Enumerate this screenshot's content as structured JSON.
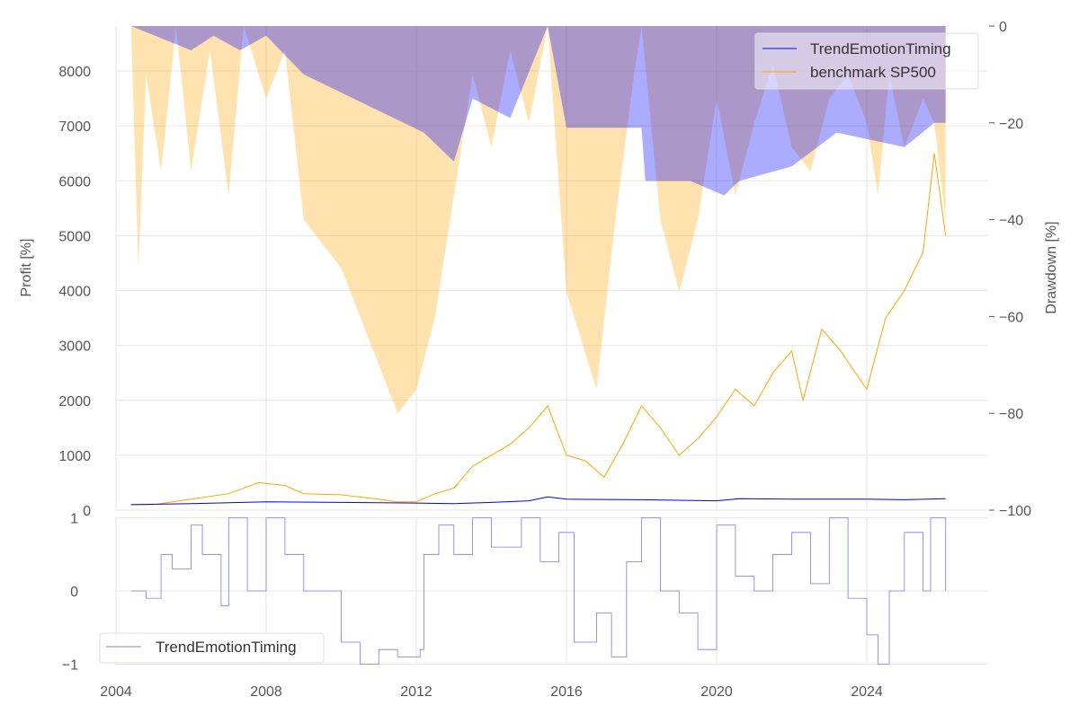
{
  "chart_data": [
    {
      "type": "area+line",
      "title": "",
      "xlabel": "",
      "ylabel": "Profit [%]",
      "ylabel_right": "Drawdown [%]",
      "xlim": [
        2003.6,
        2027.0
      ],
      "ylim": [
        0,
        8800
      ],
      "ylim_right": [
        -100,
        0
      ],
      "x_ticks": [
        2004,
        2008,
        2012,
        2016,
        2020,
        2024
      ],
      "y_ticks": [
        0,
        1000,
        2000,
        3000,
        4000,
        5000,
        6000,
        7000,
        8000
      ],
      "y_ticks_right": [
        0,
        -20,
        -40,
        -60,
        -80,
        -100
      ],
      "grid": true,
      "legend_position": "top-right",
      "legend": [
        "TrendEmotionTiming",
        "benchmark SP500"
      ],
      "colors": {
        "strategy": "#0000ff",
        "benchmark": "#ffa500",
        "strategy_dd": "#aaaaff",
        "benchmark_dd": "#ffe0aa",
        "overlap_dd": "#c4a8a8"
      },
      "series": [
        {
          "name": "TrendEmotionTiming",
          "x": [
            2004.4,
            2006,
            2008,
            2010,
            2012,
            2013,
            2014,
            2015,
            2015.5,
            2016,
            2018,
            2020,
            2020.6,
            2022,
            2024,
            2025,
            2026.1
          ],
          "values": [
            100,
            120,
            150,
            140,
            130,
            120,
            140,
            170,
            240,
            200,
            190,
            170,
            210,
            200,
            200,
            190,
            210
          ]
        },
        {
          "name": "benchmark SP500",
          "x": [
            2004.4,
            2005,
            2006,
            2007,
            2007.8,
            2008.5,
            2009,
            2010,
            2011,
            2011.5,
            2012,
            2012.5,
            2013,
            2013.5,
            2014,
            2014.5,
            2015,
            2015.5,
            2016,
            2016.5,
            2017,
            2017.5,
            2018,
            2018.5,
            2019,
            2019.5,
            2020,
            2020.5,
            2021,
            2021.5,
            2022,
            2022.3,
            2022.8,
            2023.3,
            2024,
            2024.5,
            2025,
            2025.5,
            2025.8,
            2026.1
          ],
          "values": [
            100,
            100,
            200,
            300,
            500,
            450,
            300,
            280,
            200,
            150,
            150,
            300,
            400,
            800,
            1000,
            1200,
            1500,
            1900,
            1000,
            900,
            600,
            1200,
            1900,
            1500,
            1000,
            1300,
            1700,
            2200,
            1900,
            2500,
            2900,
            2000,
            3300,
            2900,
            2200,
            3500,
            4000,
            4700,
            6500,
            5000
          ]
        }
      ],
      "drawdown_series": [
        {
          "name": "TrendEmotionTiming drawdown",
          "x": [
            2004.4,
            2006,
            2006.6,
            2007.3,
            2008,
            2009,
            2012.2,
            2013,
            2013.5,
            2014.5,
            2015.5,
            2016,
            2018,
            2018.1,
            2019.3,
            2020.2,
            2020.6,
            2022,
            2023.2,
            2025,
            2025.8,
            2026.1
          ],
          "values": [
            0,
            -5,
            -2,
            -5,
            -2,
            -10,
            -22,
            -28,
            -15,
            -19,
            0,
            -21,
            -21,
            -32,
            -32,
            -35,
            -32,
            -29,
            -22,
            -25,
            -20,
            -20
          ]
        },
        {
          "name": "benchmark SP500 drawdown",
          "x": [
            2004.4,
            2004.6,
            2004.8,
            2005.2,
            2005.6,
            2006,
            2006.5,
            2007,
            2007.4,
            2008,
            2008.5,
            2009,
            2010,
            2010.5,
            2011,
            2011.5,
            2012,
            2012.5,
            2013,
            2013.5,
            2014,
            2014.5,
            2015,
            2015.5,
            2016,
            2016.8,
            2017.3,
            2017.8,
            2018,
            2018.5,
            2019,
            2019.5,
            2020,
            2020.5,
            2021,
            2021.5,
            2022,
            2022.5,
            2023,
            2023.5,
            2024,
            2024.3,
            2024.6,
            2025,
            2025.5,
            2025.8,
            2026.1
          ],
          "values": [
            0,
            -50,
            -10,
            -30,
            0,
            -30,
            -5,
            -35,
            0,
            -15,
            -5,
            -40,
            -50,
            -60,
            -70,
            -80,
            -75,
            -60,
            -35,
            -10,
            -25,
            -5,
            -20,
            0,
            -55,
            -75,
            -40,
            -10,
            0,
            -40,
            -55,
            -40,
            -15,
            -35,
            -20,
            -8,
            -25,
            -30,
            -15,
            -10,
            -20,
            -35,
            -10,
            -25,
            -15,
            -20,
            -40
          ]
        }
      ]
    },
    {
      "type": "line",
      "title": "",
      "ylim": [
        -1,
        1
      ],
      "y_ticks": [
        1,
        0,
        -1
      ],
      "x_ticks": [
        2004,
        2008,
        2012,
        2016,
        2020,
        2024
      ],
      "legend_position": "bottom-left",
      "legend": [
        "TrendEmotionTiming"
      ],
      "series": [
        {
          "name": "TrendEmotionTiming",
          "x": [
            2004.4,
            2004.8,
            2005.2,
            2005.5,
            2006,
            2006.3,
            2006.8,
            2007,
            2007.5,
            2008,
            2008.5,
            2009,
            2009.5,
            2010,
            2010.5,
            2011,
            2011.5,
            2012.1,
            2012.2,
            2012.6,
            2013,
            2013.5,
            2014,
            2014.8,
            2015.3,
            2015.8,
            2016.2,
            2016.8,
            2017.2,
            2017.6,
            2018,
            2018.5,
            2019,
            2019.5,
            2020,
            2020.5,
            2021,
            2021.5,
            2022,
            2022.5,
            2023,
            2023.5,
            2024,
            2024.3,
            2024.6,
            2025,
            2025.5,
            2025.7,
            2026.1
          ],
          "values": [
            0,
            -0.1,
            0.5,
            0.3,
            0.9,
            0.5,
            -0.2,
            1,
            0,
            1,
            0.5,
            0,
            0,
            -0.7,
            -1,
            -0.8,
            -0.9,
            -0.8,
            0.5,
            0.9,
            0.5,
            1,
            0.6,
            1,
            0.4,
            0.8,
            -0.7,
            -0.3,
            -0.9,
            0.4,
            1,
            0,
            -0.3,
            -0.8,
            0.9,
            0.2,
            0,
            0.5,
            0.8,
            0.1,
            1,
            -0.1,
            -0.6,
            -1,
            0,
            0.8,
            0,
            1,
            0
          ]
        }
      ]
    }
  ]
}
